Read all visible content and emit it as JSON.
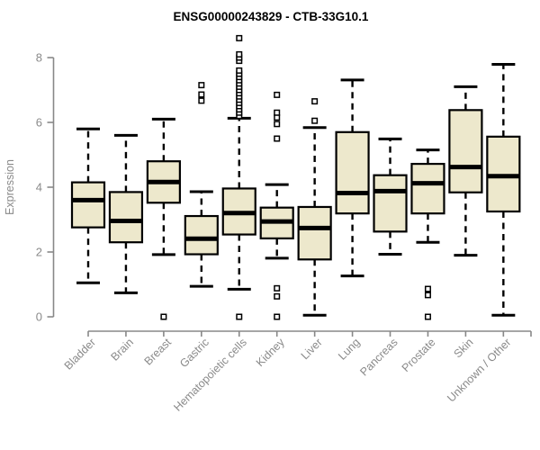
{
  "title": "ENSG00000243829 - CTB-33G10.1",
  "chart_data": {
    "type": "boxplot",
    "title": "ENSG00000243829 - CTB-33G10.1",
    "xlabel": "",
    "ylabel": "Expression",
    "ylim": [
      0,
      8.7
    ],
    "yticks": [
      0,
      2,
      4,
      6,
      8
    ],
    "grid": false,
    "legend": null,
    "categories": [
      "Bladder",
      "Brain",
      "Breast",
      "Gastric",
      "Hematopoietic cells",
      "Kidney",
      "Liver",
      "Lung",
      "Pancreas",
      "Prostate",
      "Skin",
      "Unknown / Other"
    ],
    "series": [
      {
        "name": "Bladder",
        "low": 1.05,
        "q1": 2.76,
        "median": 3.6,
        "q3": 4.15,
        "high": 5.8,
        "outliers": []
      },
      {
        "name": "Brain",
        "low": 0.74,
        "q1": 2.3,
        "median": 2.96,
        "q3": 3.85,
        "high": 5.6,
        "outliers": []
      },
      {
        "name": "Breast",
        "low": 1.92,
        "q1": 3.52,
        "median": 4.16,
        "q3": 4.8,
        "high": 6.1,
        "outliers": [
          0
        ]
      },
      {
        "name": "Gastric",
        "low": 0.94,
        "q1": 1.93,
        "median": 2.41,
        "q3": 3.11,
        "high": 3.86,
        "outliers": [
          6.67,
          6.86,
          7.15
        ]
      },
      {
        "name": "Hematopoietic cells",
        "low": 0.85,
        "q1": 2.54,
        "median": 3.2,
        "q3": 3.96,
        "high": 6.13,
        "outliers": [
          0,
          6.2,
          6.3,
          6.4,
          6.5,
          6.6,
          6.7,
          6.8,
          6.9,
          7.0,
          7.1,
          7.2,
          7.3,
          7.4,
          7.5,
          7.6,
          7.9,
          8.0,
          8.1,
          8.6
        ]
      },
      {
        "name": "Kidney",
        "low": 1.81,
        "q1": 2.42,
        "median": 2.94,
        "q3": 3.37,
        "high": 4.08,
        "outliers": [
          0,
          0.63,
          0.88,
          5.5,
          5.95,
          6.15,
          6.3,
          6.85
        ]
      },
      {
        "name": "Liver",
        "low": 0.05,
        "q1": 1.77,
        "median": 2.74,
        "q3": 3.39,
        "high": 5.84,
        "outliers": [
          6.05,
          6.65
        ]
      },
      {
        "name": "Lung",
        "low": 1.26,
        "q1": 3.19,
        "median": 3.82,
        "q3": 5.7,
        "high": 7.31,
        "outliers": []
      },
      {
        "name": "Pancreas",
        "low": 1.93,
        "q1": 2.63,
        "median": 3.88,
        "q3": 4.37,
        "high": 5.49,
        "outliers": []
      },
      {
        "name": "Prostate",
        "low": 2.3,
        "q1": 3.19,
        "median": 4.12,
        "q3": 4.72,
        "high": 5.15,
        "outliers": [
          0,
          0.67,
          0.86
        ]
      },
      {
        "name": "Skin",
        "low": 1.9,
        "q1": 3.84,
        "median": 4.62,
        "q3": 6.38,
        "high": 7.1,
        "outliers": []
      },
      {
        "name": "Unknown / Other",
        "low": 0.05,
        "q1": 3.25,
        "median": 4.34,
        "q3": 5.56,
        "high": 7.79,
        "outliers": []
      }
    ],
    "colors": {
      "box_fill": "#ede8cc",
      "box_stroke": "#000000",
      "median": "#000000",
      "whisker": "#000000",
      "outlier_fill": "#ffffff",
      "axis_line": "#888888",
      "tick_label": "#8a8a8a",
      "title": "#000000",
      "background": "#ffffff"
    }
  }
}
